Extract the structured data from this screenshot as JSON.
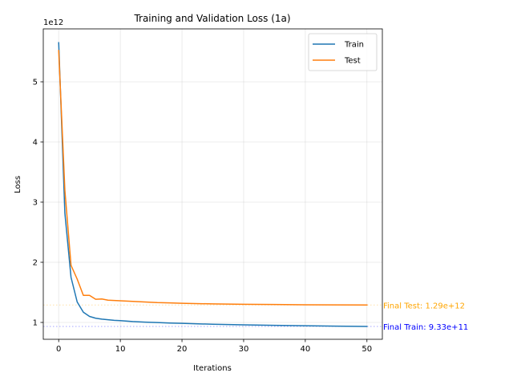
{
  "chart_data": {
    "type": "line",
    "title": "Training and Validation Loss (1a)",
    "xlabel": "Iterations",
    "ylabel": "Loss",
    "y_offset_label": "1e12",
    "xlim": [
      -2.5,
      52.5
    ],
    "ylim": [
      0.72,
      5.88
    ],
    "x_ticks": [
      0,
      10,
      20,
      30,
      40,
      50
    ],
    "y_ticks": [
      1,
      2,
      3,
      4,
      5
    ],
    "grid": true,
    "legend_position": "top-right",
    "series": [
      {
        "name": "Train",
        "color": "#1f77b4",
        "x": [
          0,
          1,
          2,
          3,
          4,
          5,
          6,
          7,
          8,
          9,
          10,
          12,
          14,
          16,
          18,
          20,
          25,
          30,
          35,
          40,
          45,
          50
        ],
        "y": [
          5.65,
          2.82,
          1.75,
          1.34,
          1.17,
          1.1,
          1.07,
          1.055,
          1.045,
          1.035,
          1.03,
          1.015,
          1.005,
          0.998,
          0.99,
          0.985,
          0.97,
          0.96,
          0.952,
          0.945,
          0.939,
          0.933
        ]
      },
      {
        "name": "Test",
        "color": "#ff7f0e",
        "x": [
          0,
          1,
          2,
          3,
          4,
          5,
          6,
          7,
          8,
          9,
          10,
          12,
          14,
          16,
          18,
          20,
          25,
          30,
          35,
          40,
          45,
          50
        ],
        "y": [
          5.52,
          3.2,
          1.95,
          1.72,
          1.45,
          1.45,
          1.385,
          1.39,
          1.37,
          1.365,
          1.36,
          1.35,
          1.34,
          1.33,
          1.325,
          1.318,
          1.308,
          1.302,
          1.298,
          1.294,
          1.292,
          1.29
        ]
      }
    ],
    "reference_lines": [
      {
        "value": 1.29,
        "color": "#ffa500",
        "label": "Final Test: 1.29e+12"
      },
      {
        "value": 0.933,
        "color": "#0000ff",
        "label": "Final Train: 9.33e+11"
      }
    ]
  }
}
